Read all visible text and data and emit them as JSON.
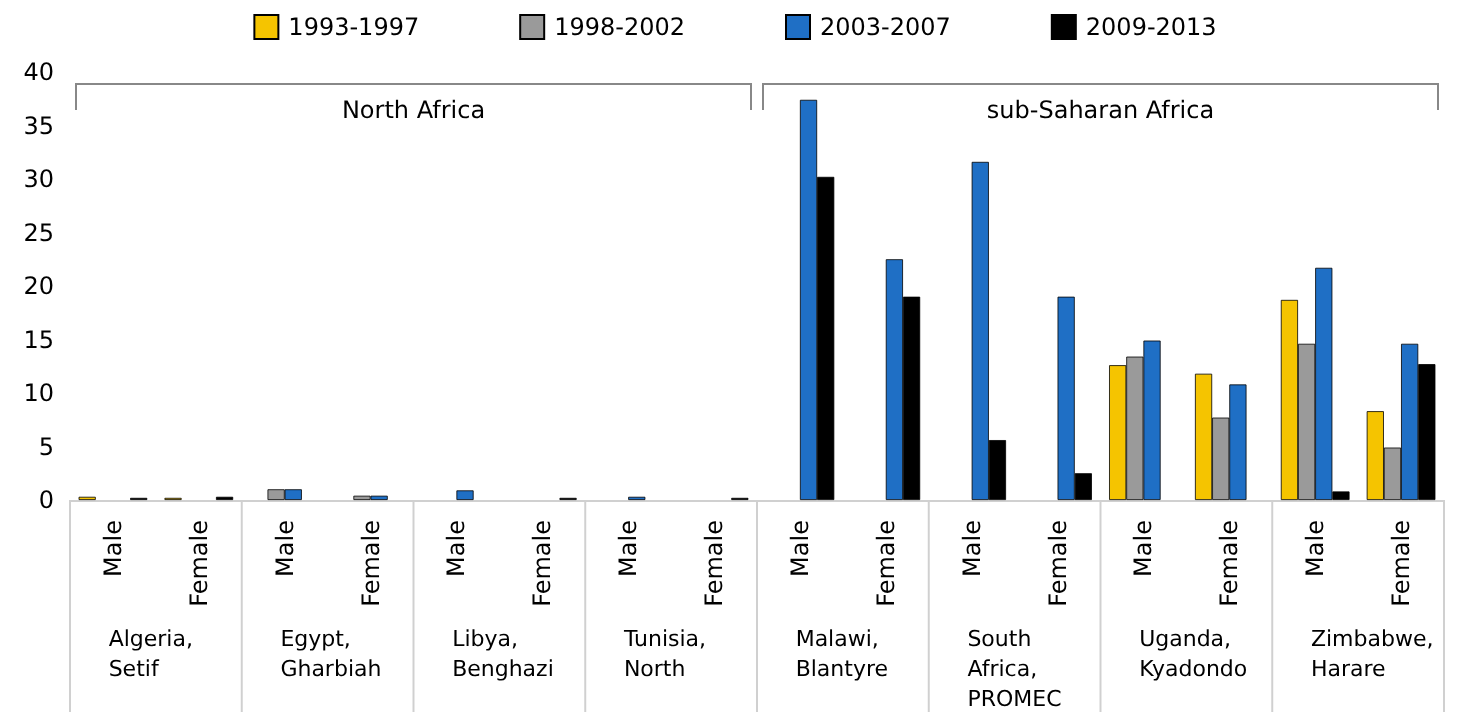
{
  "chart_data": {
    "type": "bar",
    "categories": [
      "Male",
      "Female",
      "Male",
      "Female",
      "Male",
      "Female",
      "Male",
      "Female",
      "Male",
      "Female",
      "Male",
      "Female",
      "Male",
      "Female",
      "Male",
      "Female"
    ],
    "series": [
      {
        "name": "1993-1997",
        "color": "#f5c400",
        "values": [
          0.3,
          0.2,
          null,
          null,
          null,
          null,
          null,
          null,
          null,
          null,
          null,
          null,
          12.6,
          11.8,
          18.7,
          8.3
        ]
      },
      {
        "name": "1998-2002",
        "color": "#9a9a9a",
        "values": [
          null,
          null,
          1,
          0.4,
          null,
          null,
          null,
          null,
          null,
          null,
          null,
          null,
          13.4,
          7.7,
          14.6,
          4.9
        ]
      },
      {
        "name": "2003-2007",
        "color": "#1f6fc5",
        "values": [
          null,
          null,
          1,
          0.4,
          0.9,
          null,
          0.3,
          null,
          37.4,
          22.5,
          31.6,
          19,
          14.9,
          10.8,
          21.7,
          14.6
        ]
      },
      {
        "name": "2009-2013",
        "color": "#000000",
        "values": [
          0.2,
          0.3,
          null,
          null,
          null,
          0.2,
          null,
          0.2,
          30.2,
          19,
          5.6,
          2.5,
          null,
          null,
          0.8,
          12.7
        ]
      }
    ],
    "ylim": [
      0,
      40
    ],
    "yticks": [
      0,
      5,
      10,
      15,
      20,
      25,
      30,
      35,
      40
    ],
    "grid": false,
    "legend": "top",
    "annotations": [
      "Algeria, Setif",
      "Egypt, Gharbiah",
      "Libya, Benghazi",
      "Tunisia, North",
      "Malawi, Blantyre",
      "South Africa, PROMEC",
      "Uganda, Kyadondo",
      "Zimbabwe, Harare",
      "North Africa",
      "sub-Saharan Africa"
    ]
  }
}
